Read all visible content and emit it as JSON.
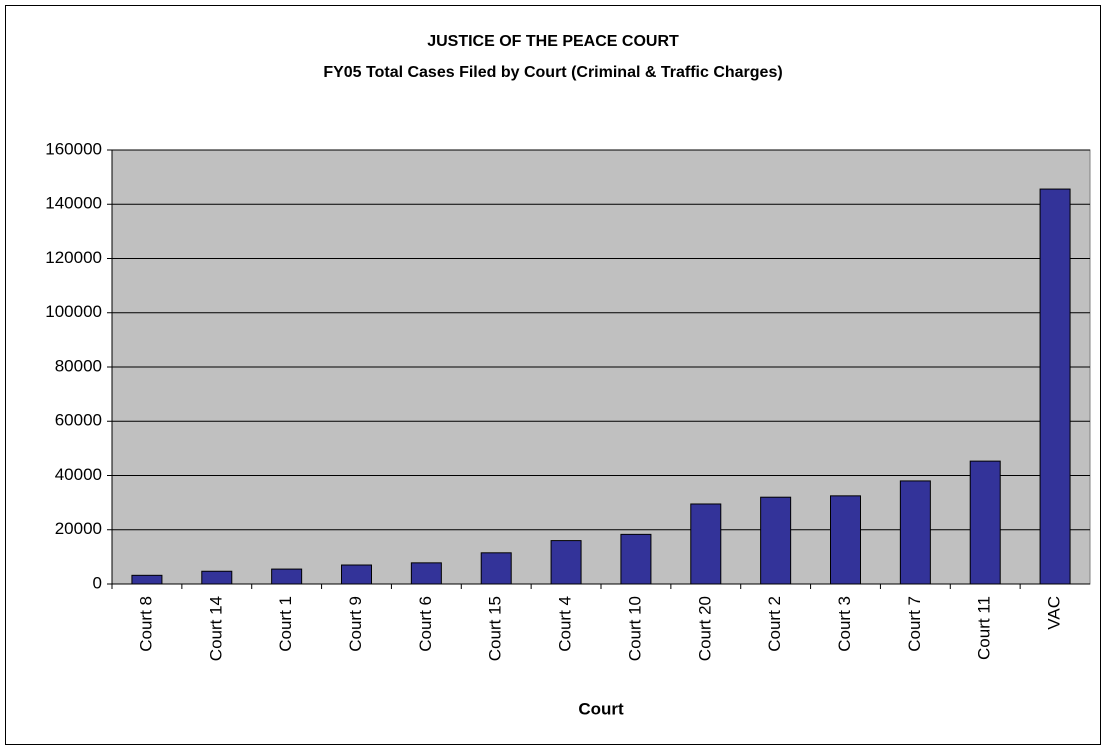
{
  "chart_data": {
    "type": "bar",
    "title": "JUSTICE OF THE PEACE COURT",
    "subtitle": "FY05 Total Cases Filed by Court (Criminal & Traffic Charges)",
    "x_label": "Court",
    "categories": [
      "Court 8",
      "Court 14",
      "Court 1",
      "Court 9",
      "Court 6",
      "Court 15",
      "Court 4",
      "Court 10",
      "Court 20",
      "Court 2",
      "Court 3",
      "Court 7",
      "Court 11",
      "VAC"
    ],
    "values": [
      3200,
      4700,
      5500,
      7000,
      7800,
      11500,
      16000,
      18300,
      29500,
      32000,
      32500,
      38000,
      45300,
      145600
    ],
    "color": "#333399",
    "ylim": [
      0,
      160000
    ],
    "yticks": [
      0,
      20000,
      40000,
      60000,
      80000,
      100000,
      120000,
      140000,
      160000
    ],
    "grid": true
  }
}
